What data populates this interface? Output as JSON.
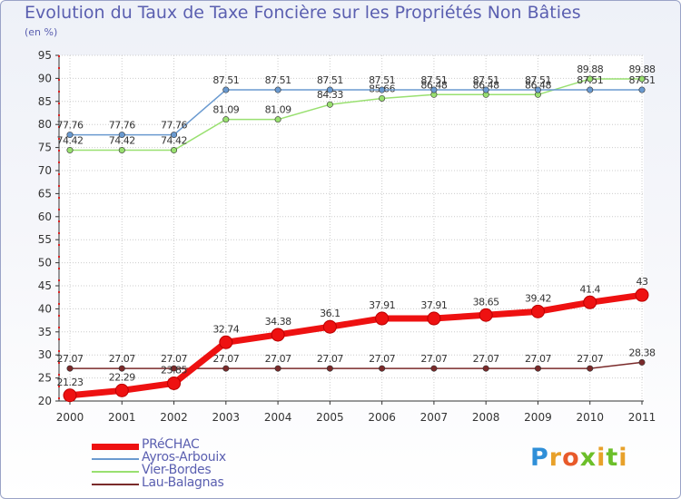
{
  "title": "Evolution du Taux de Taxe Foncière sur les Propriétés Non Bâties",
  "unit_label": "(en %)",
  "logo": {
    "letters": [
      "P",
      "r",
      "o",
      "x",
      "i",
      "t",
      "i"
    ],
    "colors": [
      "#2f8fd8",
      "#e8a12a",
      "#e85a2a",
      "#6cbf2a",
      "#e8a12a",
      "#6cbf2a",
      "#e8a12a"
    ]
  },
  "chart_data": {
    "type": "line",
    "title": "Evolution du Taux de Taxe Foncière sur les Propriétés Non Bâties",
    "ylabel": "(en %)",
    "xlabel": "",
    "ylim": [
      20,
      95
    ],
    "yticks": [
      20,
      25,
      30,
      35,
      40,
      45,
      50,
      55,
      60,
      65,
      70,
      75,
      80,
      85,
      90,
      95
    ],
    "x": [
      "2000",
      "2001",
      "2002",
      "2003",
      "2004",
      "2005",
      "2006",
      "2007",
      "2008",
      "2009",
      "2010",
      "2011"
    ],
    "grid": true,
    "series": [
      {
        "name": "Lau-Balagnas",
        "color": "#7a2a2a",
        "values": [
          27.07,
          27.07,
          27.07,
          27.07,
          27.07,
          27.07,
          27.07,
          27.07,
          27.07,
          27.07,
          27.07,
          28.38
        ],
        "labels": [
          "27.07",
          "27.07",
          "27.07",
          "27.07",
          "27.07",
          "27.07",
          "27.07",
          "27.07",
          "27.07",
          "27.07",
          "27.07",
          "28.38"
        ]
      },
      {
        "name": "Vier-Bordes",
        "color": "#99e070",
        "values": [
          74.42,
          74.42,
          74.42,
          81.09,
          81.09,
          84.33,
          85.66,
          86.48,
          86.48,
          86.48,
          89.88,
          89.88
        ],
        "labels": [
          "74.42",
          "74.42",
          "74.42",
          "81.09",
          "81.09",
          "84.33",
          "85.66",
          "86.48",
          "86.48",
          "86.48",
          "89.88",
          "89.88"
        ]
      },
      {
        "name": "Ayros-Arbouix",
        "color": "#6a9ad0",
        "values": [
          77.76,
          77.76,
          77.76,
          87.51,
          87.51,
          87.51,
          87.51,
          87.51,
          87.51,
          87.51,
          87.51,
          87.51
        ],
        "labels": [
          "77.76",
          "77.76",
          "77.76",
          "87.51",
          "87.51",
          "87.51",
          "87.51",
          "87.51",
          "87.51",
          "87.51",
          "87.51",
          "87.51"
        ]
      },
      {
        "name": "PRéCHAC",
        "color": "#ee1111",
        "values": [
          21.23,
          22.29,
          23.85,
          32.74,
          34.38,
          36.1,
          37.91,
          37.91,
          38.65,
          39.42,
          41.4,
          43
        ],
        "labels": [
          "21.23",
          "22.29",
          "23.85",
          "32.74",
          "34.38",
          "36.1",
          "37.91",
          "37.91",
          "38.65",
          "39.42",
          "41.4",
          "43"
        ]
      }
    ],
    "legend": [
      "PRéCHAC",
      "Ayros-Arbouix",
      "Vier-Bordes",
      "Lau-Balagnas"
    ],
    "legend_position": "bottom-left"
  }
}
